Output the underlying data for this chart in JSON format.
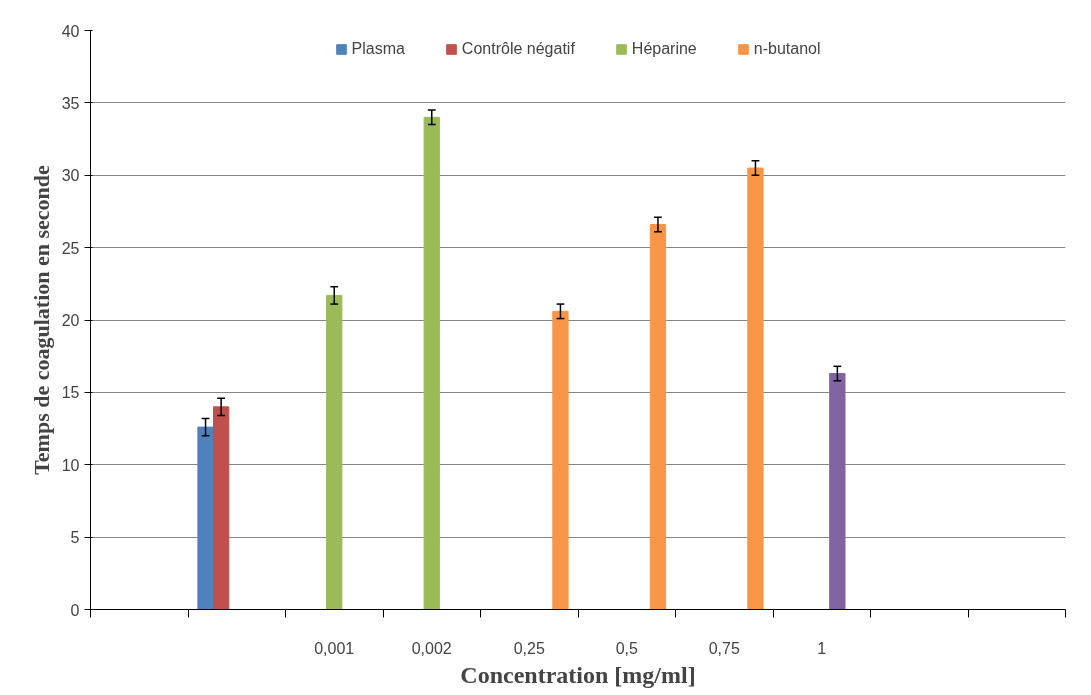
{
  "chart_data": {
    "type": "bar",
    "xlabel": "Concentration [mg/ml]",
    "ylabel": "Temps de coagulation en seconde",
    "categories": [
      null,
      null,
      "0,001",
      "0,002",
      "0,25",
      "0,5",
      "0,75",
      "1",
      null,
      null
    ],
    "series": [
      {
        "name": "Plasma",
        "color": "#4f81bd",
        "values": [
          null,
          12.6,
          null,
          null,
          null,
          null,
          null,
          null,
          null,
          null
        ],
        "errors": [
          null,
          0.6,
          null,
          null,
          null,
          null,
          null,
          null,
          null,
          null
        ]
      },
      {
        "name": "Contrôle négatif",
        "color": "#c0504d",
        "values": [
          null,
          14.0,
          null,
          null,
          null,
          null,
          null,
          null,
          null,
          null
        ],
        "errors": [
          null,
          0.6,
          null,
          null,
          null,
          null,
          null,
          null,
          null,
          null
        ]
      },
      {
        "name": "Héparine",
        "color": "#9bbb59",
        "values": [
          null,
          null,
          21.7,
          34.0,
          null,
          null,
          null,
          null,
          null,
          null
        ],
        "errors": [
          null,
          null,
          0.6,
          0.5,
          null,
          null,
          null,
          null,
          null,
          null
        ]
      },
      {
        "color": "#8064a2",
        "values": [
          null,
          null,
          null,
          null,
          null,
          null,
          null,
          16.3,
          null,
          null
        ],
        "errors": [
          null,
          null,
          null,
          null,
          null,
          null,
          null,
          0.5,
          null,
          null
        ]
      },
      {
        "name": "n-butanol",
        "color": "#f79646",
        "values": [
          null,
          null,
          null,
          null,
          20.6,
          26.6,
          30.5,
          null,
          null,
          null
        ],
        "errors": [
          null,
          null,
          null,
          null,
          0.5,
          0.5,
          0.5,
          null,
          null,
          null
        ]
      }
    ],
    "ylim": [
      0,
      40
    ],
    "yticks": [
      0,
      5,
      10,
      15,
      20,
      25,
      30,
      35,
      40
    ],
    "grid": "y",
    "legend": "top"
  }
}
